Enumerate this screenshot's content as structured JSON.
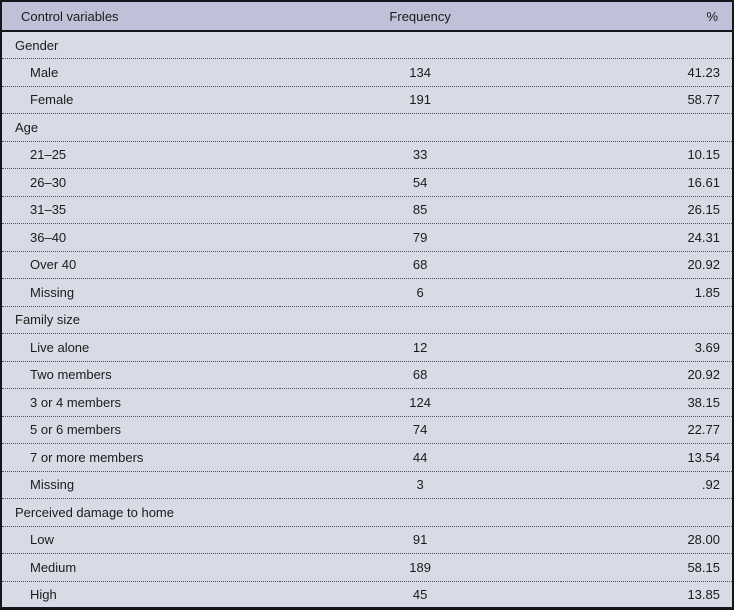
{
  "table": {
    "columns": [
      "Control variables",
      "Frequency",
      "%"
    ],
    "rows": [
      {
        "type": "section",
        "label": "Gender",
        "frequency": "",
        "percent": ""
      },
      {
        "type": "item",
        "label": "Male",
        "frequency": "134",
        "percent": "41.23"
      },
      {
        "type": "item",
        "label": "Female",
        "frequency": "191",
        "percent": "58.77"
      },
      {
        "type": "section",
        "label": "Age",
        "frequency": "",
        "percent": ""
      },
      {
        "type": "item",
        "label": "21–25",
        "frequency": "33",
        "percent": "10.15"
      },
      {
        "type": "item",
        "label": "26–30",
        "frequency": "54",
        "percent": "16.61"
      },
      {
        "type": "item",
        "label": "31–35",
        "frequency": "85",
        "percent": "26.15"
      },
      {
        "type": "item",
        "label": "36–40",
        "frequency": "79",
        "percent": "24.31"
      },
      {
        "type": "item",
        "label": "Over 40",
        "frequency": "68",
        "percent": "20.92"
      },
      {
        "type": "item",
        "label": "Missing",
        "frequency": "6",
        "percent": "1.85"
      },
      {
        "type": "section",
        "label": "Family size",
        "frequency": "",
        "percent": ""
      },
      {
        "type": "item",
        "label": "Live alone",
        "frequency": "12",
        "percent": "3.69"
      },
      {
        "type": "item",
        "label": "Two members",
        "frequency": "68",
        "percent": "20.92"
      },
      {
        "type": "item",
        "label": "3 or 4 members",
        "frequency": "124",
        "percent": "38.15"
      },
      {
        "type": "item",
        "label": "5 or 6 members",
        "frequency": "74",
        "percent": "22.77"
      },
      {
        "type": "item",
        "label": "7 or more members",
        "frequency": "44",
        "percent": "13.54"
      },
      {
        "type": "item",
        "label": "Missing",
        "frequency": "3",
        "percent": ".92"
      },
      {
        "type": "section",
        "label": "Perceived damage to home",
        "frequency": "",
        "percent": ""
      },
      {
        "type": "item",
        "label": "Low",
        "frequency": "91",
        "percent": "28.00"
      },
      {
        "type": "item",
        "label": "Medium",
        "frequency": "189",
        "percent": "58.15"
      },
      {
        "type": "item",
        "label": "High",
        "frequency": "45",
        "percent": "13.85"
      }
    ]
  },
  "colors": {
    "header_bg": "#bec1d7",
    "row_bg": "#d8dbe5",
    "border": "#15151c",
    "row_separator": "#54545e",
    "text": "#1b1b1b"
  }
}
